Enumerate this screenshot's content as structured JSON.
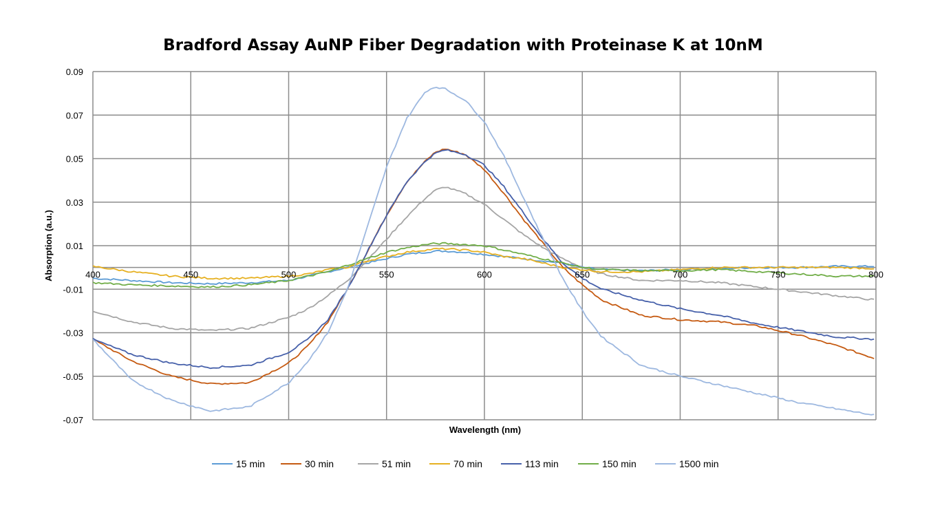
{
  "chart_data": {
    "type": "line",
    "title": "Bradford Assay AuNP Fiber Degradation with Proteinase K at 10nM",
    "xlabel": "Wavelength (nm)",
    "ylabel": "Absorption (a.u.)",
    "xlim": [
      400,
      800
    ],
    "ylim": [
      -0.07,
      0.09
    ],
    "x_ticks": [
      400,
      450,
      500,
      550,
      600,
      650,
      700,
      750,
      800
    ],
    "x_tick_labels": [
      "400",
      "450",
      "500",
      "550",
      "600",
      "650",
      "700",
      "750",
      "800"
    ],
    "y_ticks": [
      0.09,
      0.07,
      0.05,
      0.03,
      0.01,
      -0.01,
      -0.03,
      -0.05,
      -0.07
    ],
    "y_tick_labels": [
      "0.09",
      "0.07",
      "0.05",
      "0.03",
      "0.01",
      "-0.01",
      "-0.03",
      "-0.05",
      "-0.07"
    ],
    "grid": true,
    "legend_position": "bottom",
    "x": [
      400,
      420,
      440,
      460,
      480,
      500,
      510,
      520,
      530,
      540,
      550,
      560,
      570,
      575,
      580,
      590,
      600,
      610,
      620,
      630,
      640,
      650,
      660,
      680,
      700,
      720,
      740,
      760,
      780,
      800
    ],
    "series": [
      {
        "name": "15 min",
        "color": "#5B9BD5",
        "values": [
          -0.005,
          -0.006,
          -0.007,
          -0.0075,
          -0.007,
          -0.006,
          -0.004,
          -0.002,
          0.0,
          0.002,
          0.004,
          0.006,
          0.007,
          0.0075,
          0.0075,
          0.007,
          0.006,
          0.005,
          0.004,
          0.003,
          0.002,
          0.0,
          -0.001,
          -0.0015,
          -0.001,
          -0.0005,
          0.0,
          0.0,
          0.0005,
          0.0005
        ]
      },
      {
        "name": "30 min",
        "color": "#C55A11",
        "values": [
          -0.033,
          -0.043,
          -0.05,
          -0.0535,
          -0.053,
          -0.044,
          -0.036,
          -0.025,
          -0.01,
          0.007,
          0.024,
          0.039,
          0.049,
          0.053,
          0.0545,
          0.052,
          0.045,
          0.034,
          0.022,
          0.011,
          0.0,
          -0.008,
          -0.015,
          -0.022,
          -0.024,
          -0.025,
          -0.027,
          -0.031,
          -0.036,
          -0.042
        ]
      },
      {
        "name": "51 min",
        "color": "#A5A5A5",
        "values": [
          -0.02,
          -0.025,
          -0.028,
          -0.029,
          -0.028,
          -0.023,
          -0.019,
          -0.013,
          -0.006,
          0.003,
          0.013,
          0.023,
          0.032,
          0.0355,
          0.037,
          0.034,
          0.029,
          0.022,
          0.015,
          0.009,
          0.004,
          0.0,
          -0.003,
          -0.006,
          -0.006,
          -0.007,
          -0.009,
          -0.011,
          -0.013,
          -0.015
        ]
      },
      {
        "name": "70 min",
        "color": "#E6B020",
        "values": [
          0.0005,
          -0.002,
          -0.004,
          -0.005,
          -0.005,
          -0.004,
          -0.003,
          -0.001,
          0.0,
          0.003,
          0.005,
          0.007,
          0.008,
          0.0085,
          0.0085,
          0.008,
          0.007,
          0.005,
          0.004,
          0.002,
          0.0,
          -0.001,
          -0.002,
          -0.002,
          -0.001,
          0.0,
          0.0,
          0.0,
          0.0,
          -0.0005
        ]
      },
      {
        "name": "113 min",
        "color": "#4660AA",
        "values": [
          -0.033,
          -0.04,
          -0.044,
          -0.046,
          -0.045,
          -0.039,
          -0.033,
          -0.024,
          -0.01,
          0.007,
          0.024,
          0.039,
          0.049,
          0.0525,
          0.054,
          0.052,
          0.047,
          0.037,
          0.025,
          0.013,
          0.002,
          -0.005,
          -0.01,
          -0.015,
          -0.019,
          -0.022,
          -0.026,
          -0.029,
          -0.032,
          -0.033
        ]
      },
      {
        "name": "150 min",
        "color": "#70AD47",
        "values": [
          -0.007,
          -0.008,
          -0.0085,
          -0.009,
          -0.008,
          -0.006,
          -0.004,
          -0.002,
          0.001,
          0.004,
          0.007,
          0.009,
          0.0105,
          0.011,
          0.011,
          0.0105,
          0.01,
          0.008,
          0.006,
          0.004,
          0.002,
          0.0,
          -0.001,
          -0.0015,
          -0.0015,
          -0.001,
          -0.002,
          -0.003,
          -0.004,
          -0.004
        ]
      },
      {
        "name": "1500 min",
        "color": "#9DB8E0",
        "values": [
          -0.033,
          -0.052,
          -0.061,
          -0.066,
          -0.064,
          -0.053,
          -0.043,
          -0.03,
          -0.01,
          0.018,
          0.046,
          0.068,
          0.081,
          0.083,
          0.082,
          0.077,
          0.067,
          0.051,
          0.032,
          0.013,
          -0.005,
          -0.02,
          -0.032,
          -0.045,
          -0.05,
          -0.054,
          -0.058,
          -0.062,
          -0.065,
          -0.068
        ]
      }
    ]
  }
}
